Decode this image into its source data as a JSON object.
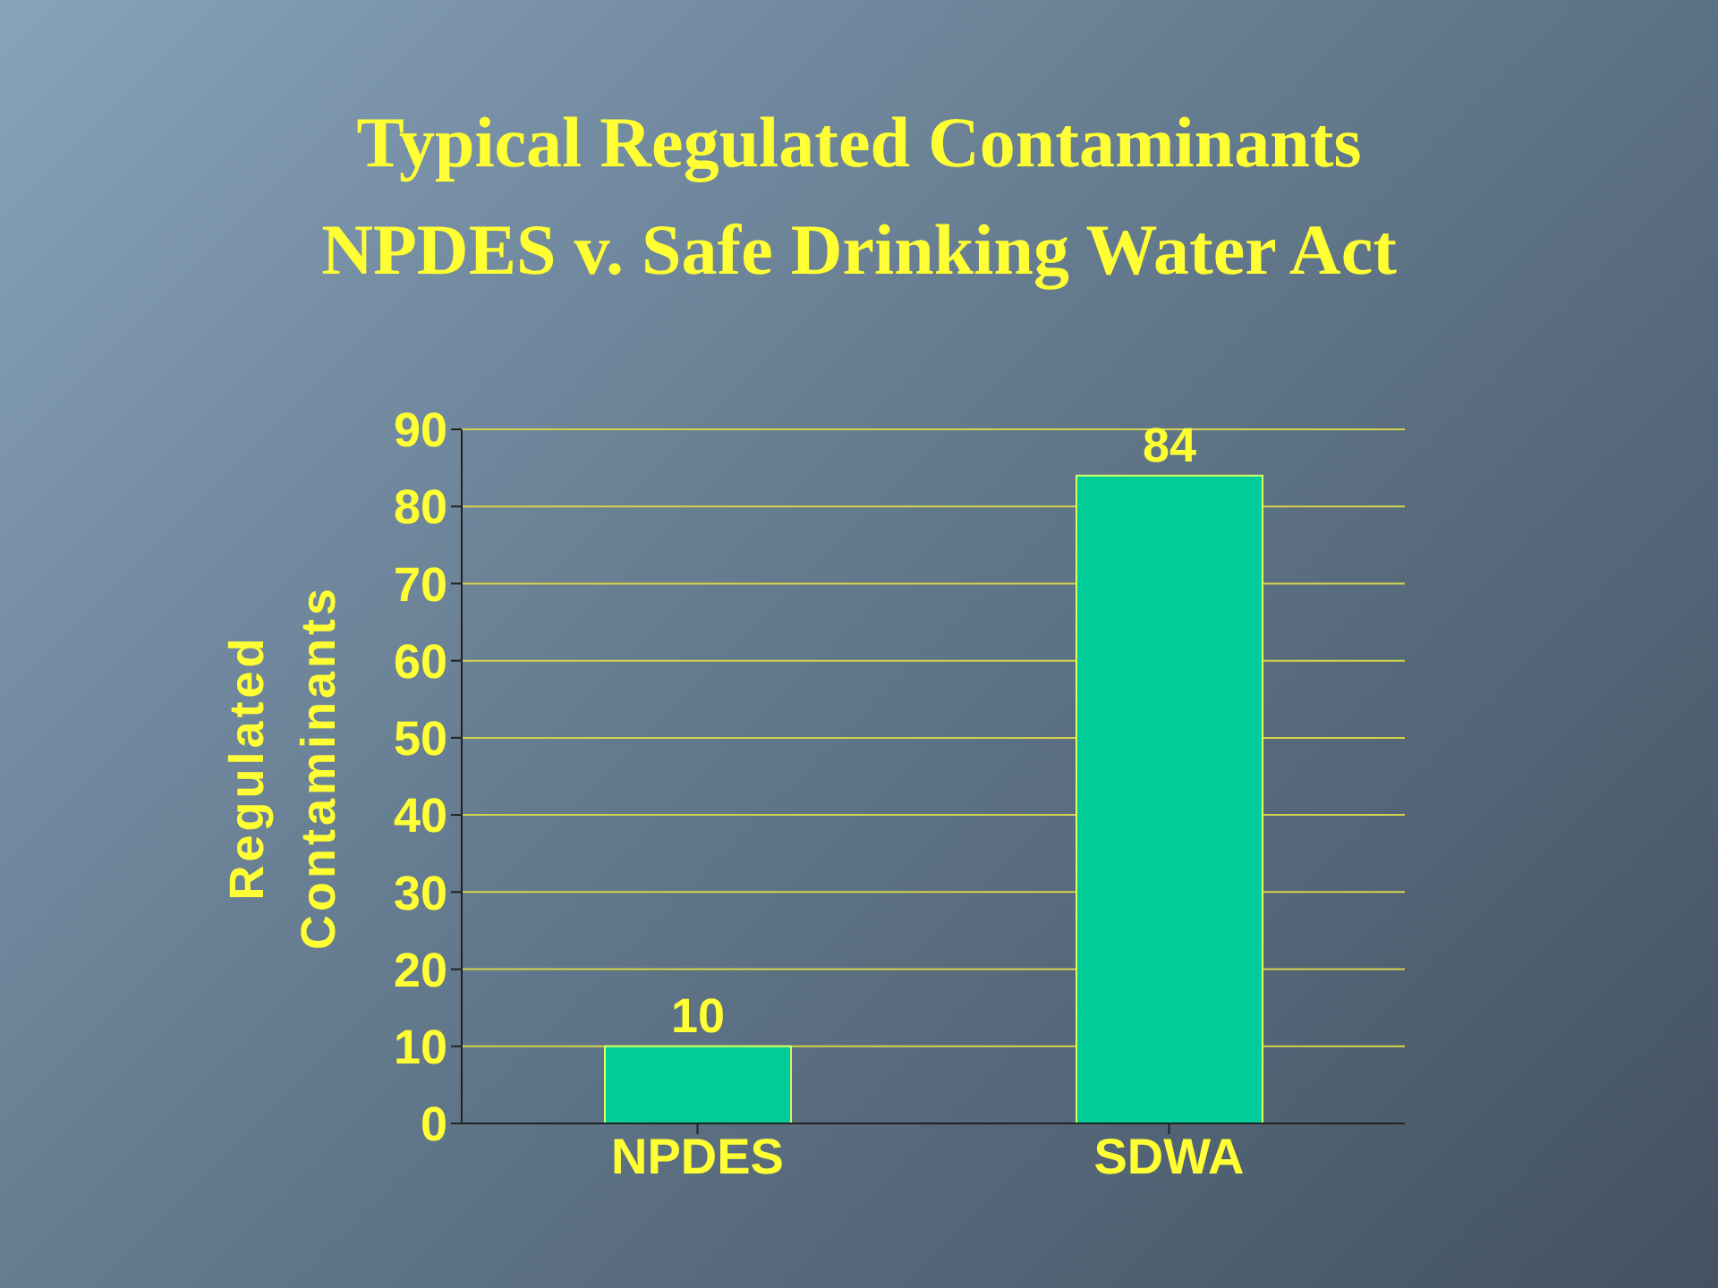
{
  "chart_data": {
    "type": "bar",
    "title": "Typical Regulated Contaminants\nNPDES v. Safe Drinking Water Act",
    "ylabel": "Regulated Contaminants",
    "categories": [
      "NPDES",
      "SDWA"
    ],
    "values": [
      10,
      84
    ],
    "color": "#00cc99",
    "ylim": [
      0,
      90
    ],
    "yticks": [
      0,
      10,
      20,
      30,
      40,
      50,
      60,
      70,
      80,
      90
    ],
    "grid": "y",
    "data_labels": true
  }
}
